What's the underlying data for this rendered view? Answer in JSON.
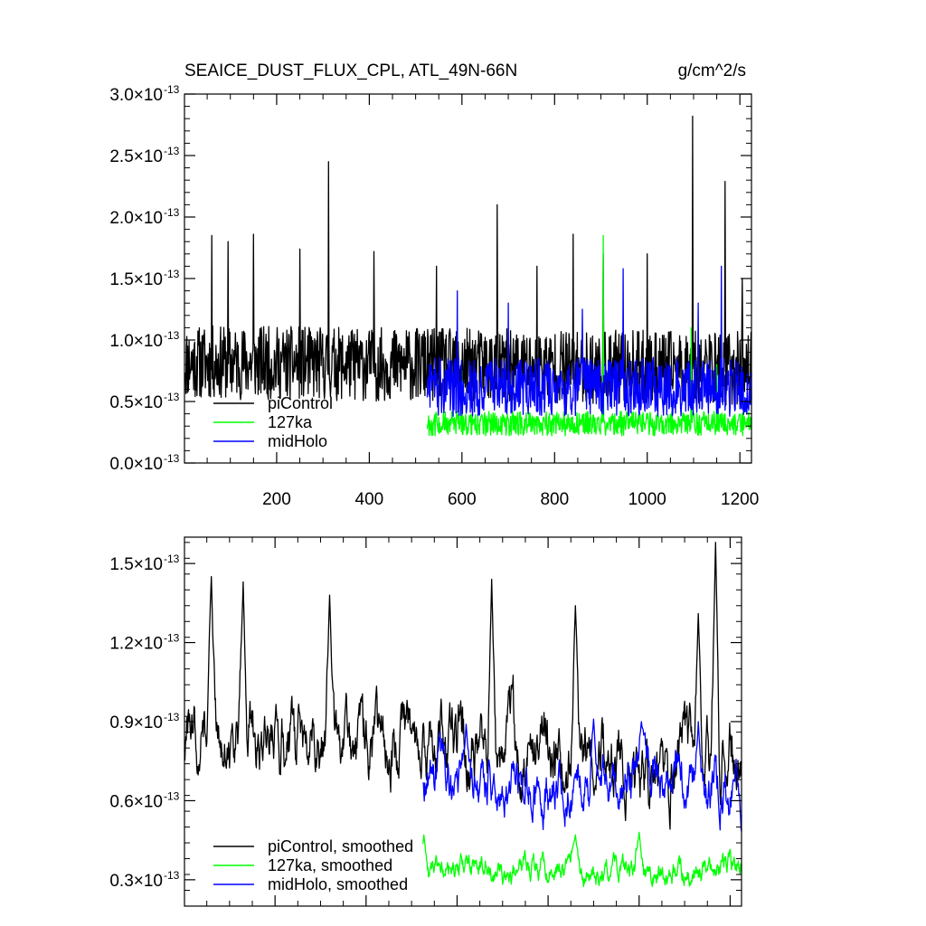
{
  "chart_data": [
    {
      "type": "line",
      "title": "SEAICE_DUST_FLUX_CPL, ATL_49N-66N",
      "units": "g/cm^2/s",
      "xlim": [
        1,
        1225
      ],
      "ylim": [
        0.0,
        3.0
      ],
      "y_exponent": "-13",
      "y_ticks": [
        0.0,
        0.5,
        1.0,
        1.5,
        2.0,
        2.5,
        3.0
      ],
      "y_tick_labels": [
        "0.0",
        "0.5",
        "1.0",
        "1.5",
        "2.0",
        "2.5",
        "3.0"
      ],
      "x_ticks": [
        200,
        400,
        600,
        800,
        1000,
        1200
      ],
      "x_tick_labels": [
        "200",
        "400",
        "600",
        "800",
        "1000",
        "1200"
      ],
      "legend_position": "bottom-left",
      "series": [
        {
          "name": "piControl",
          "color": "#000000",
          "x_range": [
            1,
            1225
          ],
          "baseline": 0.82,
          "noise": 0.3,
          "min": 0.3,
          "trend": -0.05,
          "spikes": [
            [
              60,
              1.85
            ],
            [
              95,
              1.8
            ],
            [
              150,
              1.86
            ],
            [
              250,
              1.74
            ],
            [
              312,
              2.45
            ],
            [
              410,
              1.72
            ],
            [
              545,
              1.6
            ],
            [
              676,
              2.1
            ],
            [
              762,
              1.6
            ],
            [
              840,
              1.86
            ],
            [
              905,
              1.7
            ],
            [
              1000,
              1.7
            ],
            [
              1098,
              2.82
            ],
            [
              1168,
              2.29
            ],
            [
              1205,
              1.5
            ]
          ]
        },
        {
          "name": "127ka",
          "color": "#00ff00",
          "x_range": [
            525,
            1225
          ],
          "baseline": 0.32,
          "noise": 0.1,
          "min": 0.12,
          "trend": 0,
          "spikes": [
            [
              600,
              0.75
            ],
            [
              905,
              1.85
            ],
            [
              1095,
              1.1
            ],
            [
              1150,
              0.8
            ]
          ]
        },
        {
          "name": "midHolo",
          "color": "#0000ff",
          "x_range": [
            525,
            1225
          ],
          "baseline": 0.62,
          "noise": 0.24,
          "min": 0.17,
          "trend": 0,
          "spikes": [
            [
              590,
              1.4
            ],
            [
              700,
              1.3
            ],
            [
              860,
              1.25
            ],
            [
              948,
              1.58
            ],
            [
              1110,
              1.3
            ],
            [
              1160,
              1.6
            ]
          ]
        }
      ]
    },
    {
      "type": "line",
      "title": "",
      "xlim": [
        1,
        1225
      ],
      "ylim": [
        0.2,
        1.6
      ],
      "y_exponent": "-13",
      "y_ticks": [
        0.3,
        0.6,
        0.9,
        1.2,
        1.5
      ],
      "y_tick_labels": [
        "0.3",
        "0.6",
        "0.9",
        "1.2",
        "1.5"
      ],
      "legend_position": "bottom-left",
      "series": [
        {
          "name": "piControl, smoothed",
          "color": "#000000",
          "x_range": [
            1,
            1225
          ],
          "baseline": 0.85,
          "noise": 0.16,
          "min": 0.42,
          "trend": -0.12,
          "spikes": [
            [
              60,
              1.45
            ],
            [
              130,
              1.43
            ],
            [
              320,
              1.38
            ],
            [
              676,
              1.44
            ],
            [
              860,
              1.34
            ],
            [
              1130,
              1.31
            ],
            [
              1168,
              1.58
            ]
          ]
        },
        {
          "name": "127ka, smoothed",
          "color": "#00ff00",
          "x_range": [
            525,
            1225
          ],
          "baseline": 0.34,
          "noise": 0.06,
          "min": 0.24,
          "trend": 0,
          "spikes": [
            [
              527,
              0.47
            ],
            [
              860,
              0.47
            ],
            [
              1000,
              0.48
            ]
          ]
        },
        {
          "name": "midHolo, smoothed",
          "color": "#0000ff",
          "x_range": [
            525,
            1225
          ],
          "baseline": 0.66,
          "noise": 0.12,
          "min": 0.39,
          "trend": 0,
          "spikes": [
            [
              620,
              0.89
            ],
            [
              900,
              0.91
            ],
            [
              1005,
              0.9
            ],
            [
              1130,
              0.9
            ]
          ]
        }
      ]
    }
  ]
}
